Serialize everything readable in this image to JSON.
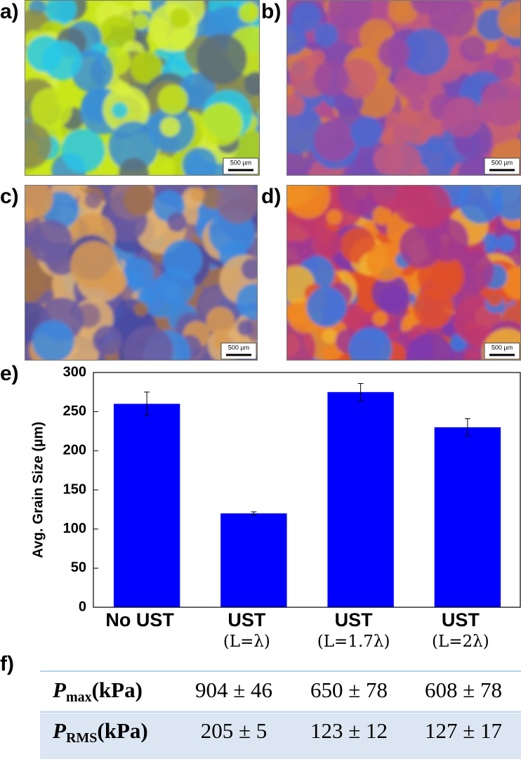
{
  "panels": [
    {
      "label": "a)",
      "scale_bar": "500 µm"
    },
    {
      "label": "b)",
      "scale_bar": "500 µm"
    },
    {
      "label": "c)",
      "scale_bar": "500 µm"
    },
    {
      "label": "d)",
      "scale_bar": "500 µm"
    }
  ],
  "chart_label": "e)",
  "chart_data": {
    "type": "bar",
    "ylabel": "Avg. Grain Size (µm)",
    "categories": [
      "No UST",
      "UST",
      "UST",
      "UST"
    ],
    "category_sublabels": [
      null,
      "(L=λ)",
      "(L=1.7λ)",
      "(L=2λ)"
    ],
    "values": [
      260,
      120,
      275,
      230
    ],
    "errors": [
      15,
      2,
      11,
      11
    ],
    "color": "#0000ff",
    "ylim": [
      0,
      300
    ],
    "yticks": [
      0,
      50,
      100,
      150,
      200,
      250,
      300
    ]
  },
  "table_label": "f)",
  "table": {
    "rows": [
      {
        "symbol": "P",
        "sub": "max",
        "unit": "(kPa)",
        "cells": [
          "904 ± 46",
          "650 ± 78",
          "608 ± 78"
        ]
      },
      {
        "symbol": "P",
        "sub": "RMS",
        "unit": "(kPa)",
        "cells": [
          "205 ± 5",
          "123 ± 12",
          "127 ± 17"
        ]
      }
    ]
  }
}
